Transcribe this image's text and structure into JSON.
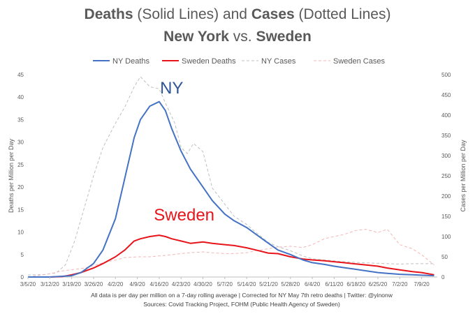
{
  "chart_data": {
    "type": "line",
    "title": {
      "line1": [
        {
          "text": "Deaths",
          "bold": true
        },
        {
          "text": " (Solid Lines) and ",
          "bold": false
        },
        {
          "text": "Cases",
          "bold": true
        },
        {
          "text": " (Dotted Lines)",
          "bold": false
        }
      ],
      "line2": [
        {
          "text": "New York",
          "bold": true
        },
        {
          "text": "  vs. ",
          "bold": false
        },
        {
          "text": "Sweden",
          "bold": true
        }
      ]
    },
    "ylabel": "Deaths per Million per Day",
    "y2label": "Cases per Million per Day",
    "ylim": [
      0,
      45
    ],
    "y2lim": [
      0,
      500
    ],
    "yticks": [
      0,
      5,
      10,
      15,
      20,
      25,
      30,
      35,
      40,
      45
    ],
    "y2ticks": [
      0,
      50,
      100,
      150,
      200,
      250,
      300,
      350,
      400,
      450,
      500
    ],
    "xlim": [
      "2020-03-05",
      "2020-07-14"
    ],
    "xticks": [
      "3/5/20",
      "3/12/20",
      "3/19/20",
      "3/26/20",
      "4/2/20",
      "4/9/20",
      "4/16/20",
      "4/23/20",
      "4/30/20",
      "5/7/20",
      "5/14/20",
      "5/21/20",
      "5/28/20",
      "6/4/20",
      "6/11/20",
      "6/18/20",
      "6/25/20",
      "7/2/20",
      "7/9/20"
    ],
    "legend_position": "top",
    "series": [
      {
        "name": "NY Deaths",
        "axis": "left",
        "color": "#4472C4",
        "style": "solid",
        "points": [
          [
            "2020-03-05",
            0
          ],
          [
            "2020-03-12",
            0
          ],
          [
            "2020-03-19",
            0.3
          ],
          [
            "2020-03-22",
            1
          ],
          [
            "2020-03-26",
            3
          ],
          [
            "2020-03-29",
            6
          ],
          [
            "2020-04-02",
            13
          ],
          [
            "2020-04-05",
            22
          ],
          [
            "2020-04-08",
            31
          ],
          [
            "2020-04-10",
            35
          ],
          [
            "2020-04-13",
            38
          ],
          [
            "2020-04-16",
            39
          ],
          [
            "2020-04-18",
            37
          ],
          [
            "2020-04-20",
            33
          ],
          [
            "2020-04-23",
            28
          ],
          [
            "2020-04-26",
            24
          ],
          [
            "2020-04-30",
            20
          ],
          [
            "2020-05-03",
            17
          ],
          [
            "2020-05-07",
            14
          ],
          [
            "2020-05-10",
            12.5
          ],
          [
            "2020-05-14",
            11
          ],
          [
            "2020-05-17",
            9.5
          ],
          [
            "2020-05-21",
            7.5
          ],
          [
            "2020-05-24",
            6
          ],
          [
            "2020-05-28",
            5
          ],
          [
            "2020-06-01",
            3.8
          ],
          [
            "2020-06-04",
            3.2
          ],
          [
            "2020-06-08",
            2.8
          ],
          [
            "2020-06-11",
            2.4
          ],
          [
            "2020-06-14",
            2.1
          ],
          [
            "2020-06-18",
            1.7
          ],
          [
            "2020-06-21",
            1.4
          ],
          [
            "2020-06-25",
            1
          ],
          [
            "2020-06-28",
            0.8
          ],
          [
            "2020-07-02",
            0.6
          ],
          [
            "2020-07-06",
            0.5
          ],
          [
            "2020-07-09",
            0.4
          ],
          [
            "2020-07-13",
            0.3
          ]
        ]
      },
      {
        "name": "Sweden Deaths",
        "axis": "left",
        "color": "#E8141B",
        "style": "solid",
        "points": [
          [
            "2020-03-05",
            0
          ],
          [
            "2020-03-12",
            0
          ],
          [
            "2020-03-16",
            0.1
          ],
          [
            "2020-03-19",
            0.5
          ],
          [
            "2020-03-22",
            1
          ],
          [
            "2020-03-26",
            2
          ],
          [
            "2020-03-29",
            3
          ],
          [
            "2020-04-02",
            4.5
          ],
          [
            "2020-04-05",
            6
          ],
          [
            "2020-04-08",
            8
          ],
          [
            "2020-04-10",
            8.5
          ],
          [
            "2020-04-13",
            9
          ],
          [
            "2020-04-16",
            9.3
          ],
          [
            "2020-04-18",
            9
          ],
          [
            "2020-04-20",
            8.5
          ],
          [
            "2020-04-23",
            8
          ],
          [
            "2020-04-26",
            7.5
          ],
          [
            "2020-04-30",
            7.8
          ],
          [
            "2020-05-03",
            7.5
          ],
          [
            "2020-05-07",
            7.2
          ],
          [
            "2020-05-10",
            7
          ],
          [
            "2020-05-14",
            6.5
          ],
          [
            "2020-05-17",
            6
          ],
          [
            "2020-05-21",
            5.3
          ],
          [
            "2020-05-24",
            5.2
          ],
          [
            "2020-05-28",
            4.5
          ],
          [
            "2020-06-01",
            4
          ],
          [
            "2020-06-04",
            3.8
          ],
          [
            "2020-06-08",
            3.6
          ],
          [
            "2020-06-11",
            3.4
          ],
          [
            "2020-06-14",
            3.2
          ],
          [
            "2020-06-18",
            2.9
          ],
          [
            "2020-06-21",
            2.7
          ],
          [
            "2020-06-25",
            2.4
          ],
          [
            "2020-06-28",
            2
          ],
          [
            "2020-07-02",
            1.6
          ],
          [
            "2020-07-06",
            1.2
          ],
          [
            "2020-07-09",
            1
          ],
          [
            "2020-07-13",
            0.5
          ]
        ]
      },
      {
        "name": "NY Cases",
        "axis": "right",
        "color": "#BFBFBF",
        "style": "dashed",
        "points": [
          [
            "2020-03-05",
            5
          ],
          [
            "2020-03-10",
            6
          ],
          [
            "2020-03-14",
            10
          ],
          [
            "2020-03-17",
            30
          ],
          [
            "2020-03-20",
            90
          ],
          [
            "2020-03-23",
            170
          ],
          [
            "2020-03-26",
            250
          ],
          [
            "2020-03-29",
            320
          ],
          [
            "2020-04-02",
            380
          ],
          [
            "2020-04-05",
            420
          ],
          [
            "2020-04-08",
            470
          ],
          [
            "2020-04-10",
            495
          ],
          [
            "2020-04-13",
            470
          ],
          [
            "2020-04-16",
            465
          ],
          [
            "2020-04-18",
            430
          ],
          [
            "2020-04-21",
            380
          ],
          [
            "2020-04-23",
            320
          ],
          [
            "2020-04-25",
            305
          ],
          [
            "2020-04-27",
            330
          ],
          [
            "2020-04-30",
            310
          ],
          [
            "2020-05-03",
            220
          ],
          [
            "2020-05-07",
            180
          ],
          [
            "2020-05-10",
            150
          ],
          [
            "2020-05-14",
            130
          ],
          [
            "2020-05-17",
            110
          ],
          [
            "2020-05-21",
            85
          ],
          [
            "2020-05-24",
            75
          ],
          [
            "2020-05-28",
            65
          ],
          [
            "2020-06-01",
            52
          ],
          [
            "2020-06-04",
            45
          ],
          [
            "2020-06-08",
            42
          ],
          [
            "2020-06-11",
            40
          ],
          [
            "2020-06-14",
            38
          ],
          [
            "2020-06-18",
            36
          ],
          [
            "2020-06-21",
            35
          ],
          [
            "2020-06-25",
            34
          ],
          [
            "2020-06-28",
            33
          ],
          [
            "2020-07-02",
            32
          ],
          [
            "2020-07-06",
            33
          ],
          [
            "2020-07-09",
            33
          ],
          [
            "2020-07-13",
            33
          ]
        ]
      },
      {
        "name": "Sweden Cases",
        "axis": "right",
        "color": "#F4B6B6",
        "style": "dashed",
        "points": [
          [
            "2020-03-05",
            0
          ],
          [
            "2020-03-12",
            8
          ],
          [
            "2020-03-16",
            15
          ],
          [
            "2020-03-19",
            18
          ],
          [
            "2020-03-23",
            22
          ],
          [
            "2020-03-26",
            28
          ],
          [
            "2020-03-29",
            35
          ],
          [
            "2020-04-02",
            42
          ],
          [
            "2020-04-05",
            48
          ],
          [
            "2020-04-09",
            50
          ],
          [
            "2020-04-13",
            50
          ],
          [
            "2020-04-16",
            52
          ],
          [
            "2020-04-20",
            55
          ],
          [
            "2020-04-23",
            58
          ],
          [
            "2020-04-26",
            60
          ],
          [
            "2020-04-30",
            62
          ],
          [
            "2020-05-03",
            60
          ],
          [
            "2020-05-07",
            58
          ],
          [
            "2020-05-10",
            58
          ],
          [
            "2020-05-14",
            60
          ],
          [
            "2020-05-17",
            65
          ],
          [
            "2020-05-21",
            70
          ],
          [
            "2020-05-24",
            74
          ],
          [
            "2020-05-28",
            76
          ],
          [
            "2020-06-01",
            73
          ],
          [
            "2020-06-04",
            80
          ],
          [
            "2020-06-08",
            95
          ],
          [
            "2020-06-11",
            100
          ],
          [
            "2020-06-14",
            105
          ],
          [
            "2020-06-18",
            115
          ],
          [
            "2020-06-21",
            118
          ],
          [
            "2020-06-25",
            110
          ],
          [
            "2020-06-28",
            118
          ],
          [
            "2020-07-02",
            80
          ],
          [
            "2020-07-06",
            70
          ],
          [
            "2020-07-09",
            55
          ],
          [
            "2020-07-13",
            30
          ]
        ]
      }
    ],
    "annotations": [
      {
        "text": "NY",
        "color": "#2E5597",
        "date": "2020-04-20",
        "y": 40.8
      },
      {
        "text": "Sweden",
        "color": "#E8141B",
        "date": "2020-04-24",
        "y": 12.6
      }
    ],
    "footnotes": [
      "All data is per day per million on a 7-day rolling average | Corrected for NY May 7th retro deaths | Twitter: @yinonw",
      "Sources: Covid Tracking Project, FOHM (Public Health Agency of Sweden)"
    ]
  }
}
